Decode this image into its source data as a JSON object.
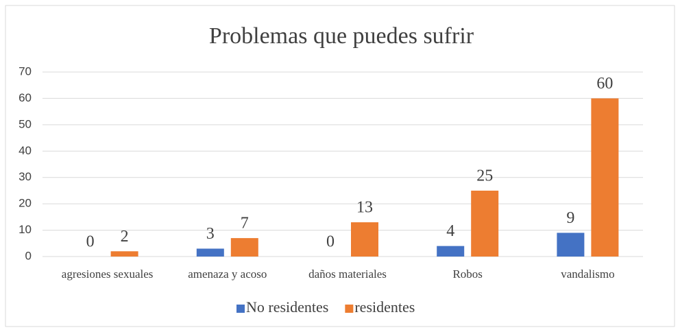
{
  "chart_data": {
    "type": "bar",
    "title": "Problemas que puedes sufrir",
    "categories": [
      "agresiones sexuales",
      "amenaza y acoso",
      "daños materiales",
      "Robos",
      "vandalismo"
    ],
    "series": [
      {
        "name": "No residentes",
        "color": "#4472c4",
        "values": [
          0,
          3,
          0,
          4,
          9
        ]
      },
      {
        "name": "residentes",
        "color": "#ed7d31",
        "values": [
          2,
          7,
          13,
          25,
          60
        ]
      }
    ],
    "ylim": [
      0,
      70
    ],
    "yticks": [
      0,
      10,
      20,
      30,
      40,
      50,
      60,
      70
    ],
    "grid": true,
    "legend": "bottom"
  }
}
